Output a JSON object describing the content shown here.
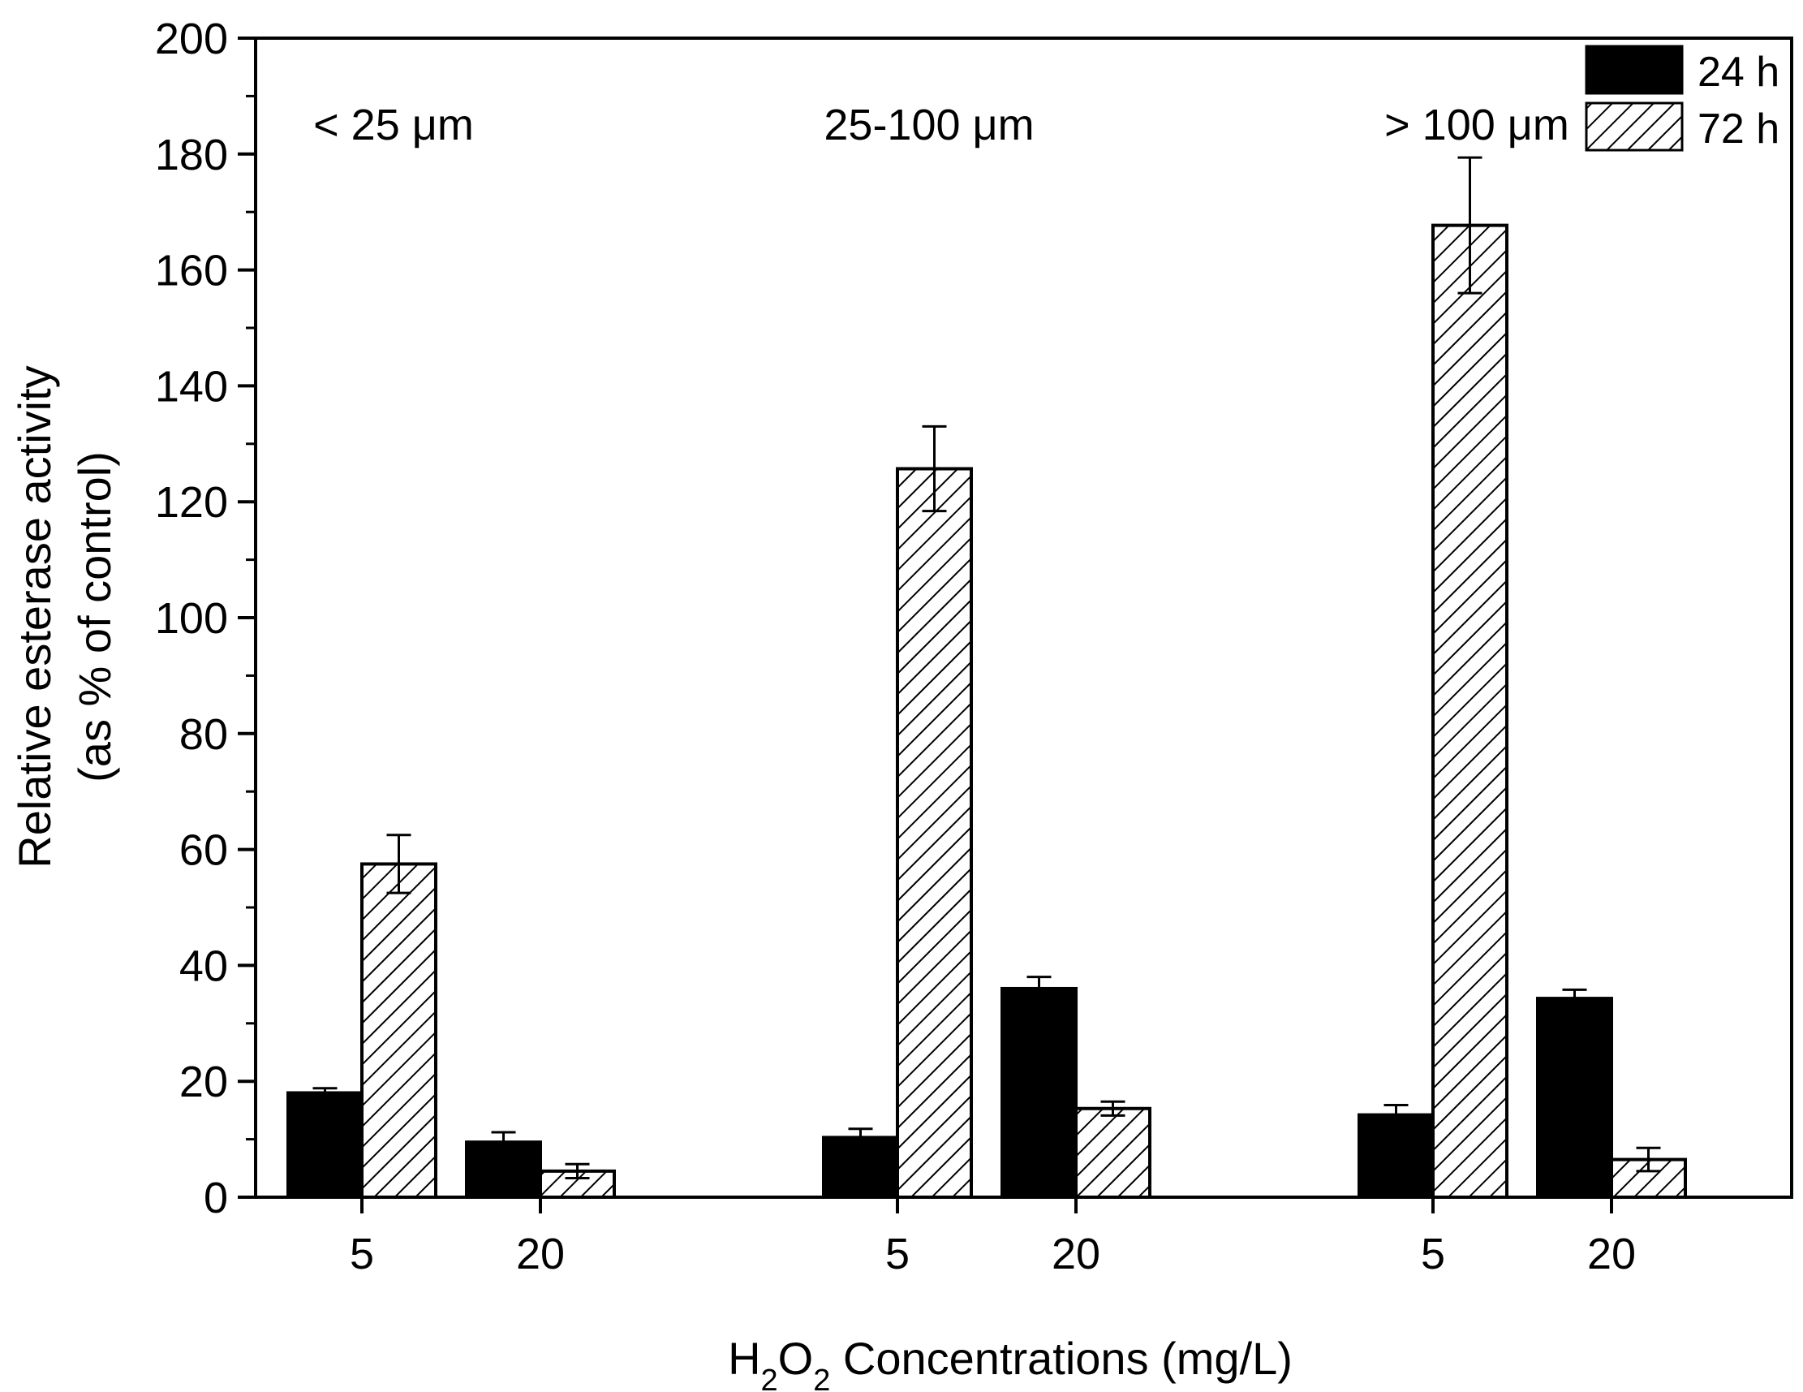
{
  "chart_data": {
    "type": "bar",
    "xlabel_parts": {
      "h": "H",
      "sub1": "2",
      "o": "O",
      "sub2": "2",
      "rest": " Concentrations (mg/L)"
    },
    "ylabel_lines": [
      "Relative esterase activity",
      "(as % of control)"
    ],
    "ylim": [
      0,
      200
    ],
    "yticks": [
      0,
      20,
      40,
      60,
      80,
      100,
      120,
      140,
      160,
      180,
      200
    ],
    "grid": false,
    "legend_position": "top-right",
    "groups": [
      {
        "label": "< 25 μm",
        "categories": [
          "5",
          "20"
        ]
      },
      {
        "label": "25-100 μm",
        "categories": [
          "5",
          "20"
        ]
      },
      {
        "label": "> 100 μm",
        "categories": [
          "5",
          "20"
        ]
      }
    ],
    "series": [
      {
        "name": "24 h",
        "style": "solid",
        "color": "#000000",
        "values": [
          18,
          9.5,
          10.3,
          36,
          14.2,
          34.3
        ],
        "errors": [
          0.8,
          1.7,
          1.5,
          2.0,
          1.7,
          1.5
        ]
      },
      {
        "name": "72 h",
        "style": "hatched",
        "color": "#ffffff",
        "values": [
          57.5,
          4.5,
          125.7,
          15.3,
          167.7,
          6.5
        ],
        "errors": [
          5.0,
          1.2,
          7.3,
          1.2,
          11.7,
          2.0
        ]
      }
    ]
  }
}
